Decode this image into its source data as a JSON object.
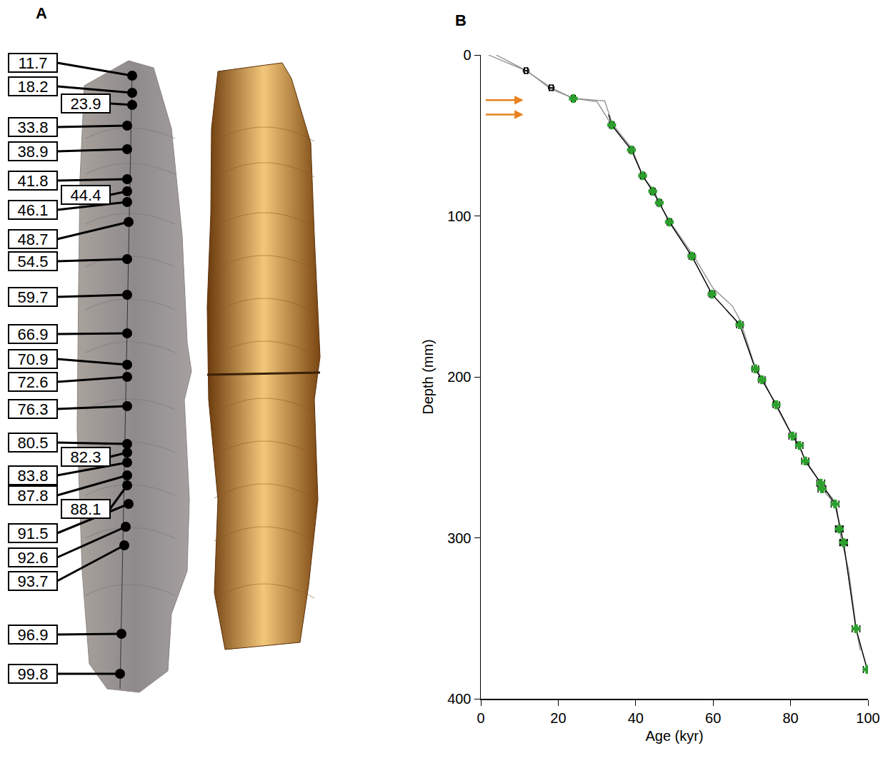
{
  "panel_a": {
    "letter": "A",
    "labels": [
      "11.7",
      "18.2",
      "23.9",
      "33.8",
      "38.9",
      "41.8",
      "44.4",
      "46.1",
      "48.7",
      "54.5",
      "59.7",
      "66.9",
      "70.9",
      "72.6",
      "76.3",
      "80.5",
      "82.3",
      "83.8",
      "87.8",
      "88.1",
      "91.5",
      "92.6",
      "93.7",
      "96.9",
      "99.8"
    ]
  },
  "panel_b": {
    "letter": "B"
  },
  "chart_data": {
    "type": "scatter",
    "x_label": "Age (kyr)",
    "y_label": "Depth (mm)",
    "xlim": [
      0,
      100
    ],
    "ylim": [
      400,
      0
    ],
    "xticks": [
      0,
      20,
      40,
      60,
      80,
      100
    ],
    "yticks": [
      0,
      100,
      200,
      300,
      400
    ],
    "grid": false,
    "series": [
      {
        "type": "line",
        "color": "#8c8c8c",
        "line_style": "solid",
        "x": [
          2,
          11.7,
          18.2,
          23.9,
          30,
          33.8,
          38.9,
          41.8,
          44.4,
          46.1,
          48.7,
          54.5,
          59.7,
          66.9,
          70.9,
          72.6,
          76.3,
          80.5,
          82.3,
          83.8,
          87.8,
          88.1,
          91.5,
          93,
          93.7,
          96.9,
          99.8
        ],
        "values": [
          0,
          9.8,
          20.4,
          27,
          29,
          43.5,
          59,
          75,
          84.7,
          91.8,
          103.8,
          125,
          148.6,
          167.6,
          195,
          201.8,
          217.3,
          236.8,
          242.6,
          252.3,
          266,
          269.6,
          279,
          297,
          303,
          356.5,
          381.8
        ]
      },
      {
        "type": "line",
        "color": "#8c8c8c",
        "line_style": "solid",
        "x": [
          4,
          12,
          18,
          24,
          32,
          34,
          39,
          41,
          42,
          45,
          46,
          49,
          55,
          60,
          65,
          67,
          71,
          73,
          76,
          80,
          82,
          84,
          88,
          91,
          92,
          93,
          95,
          97,
          98
        ],
        "values": [
          0,
          10,
          21,
          27,
          28.5,
          43,
          58,
          70,
          76,
          85,
          92,
          104,
          125,
          145,
          156,
          165,
          195,
          202,
          217,
          235,
          243,
          252,
          267,
          276,
          282,
          300,
          320,
          357,
          370
        ]
      },
      {
        "type": "line",
        "color": "#000000",
        "line_style": "solid",
        "x": [
          33,
          33.8,
          38.9,
          41.8,
          44.4,
          46.1,
          48.7,
          54.5,
          59.7,
          66.9,
          70.9,
          72.6,
          76.3,
          80.5,
          82.3,
          83.8,
          87.8,
          91.5,
          93.7,
          96.9,
          99.8
        ],
        "values": [
          37,
          43.5,
          59,
          75,
          84.7,
          91.8,
          103.8,
          125,
          148.6,
          167.6,
          195,
          201.8,
          217.3,
          236.8,
          242.6,
          252.3,
          266,
          279,
          303,
          356.5,
          381.8
        ]
      },
      {
        "type": "scatter",
        "marker": "circle-open",
        "color": "#000000",
        "x": [
          11.7,
          18.2,
          92.6,
          93.7
        ],
        "values": [
          9.8,
          20.4,
          294.5,
          303
        ],
        "x_error": [
          0.4,
          0.5,
          0.8,
          0.8
        ]
      },
      {
        "type": "scatter",
        "marker": "cross",
        "color": "#2ca02c",
        "x": [
          23.9,
          33.8,
          38.9,
          41.8,
          44.4,
          46.1,
          48.7,
          54.5,
          59.7,
          66.9,
          70.9,
          72.6,
          76.3,
          80.5,
          82.3,
          83.8,
          87.8,
          88.1,
          91.5,
          92.6,
          93.7,
          96.9,
          99.8
        ],
        "values": [
          27.1,
          43.5,
          59,
          75,
          84.7,
          91.8,
          103.8,
          125,
          148.6,
          167.6,
          195,
          201.8,
          217.3,
          236.8,
          242.6,
          252.3,
          266,
          269.6,
          279,
          294.5,
          303,
          356.5,
          381.8
        ],
        "x_error": [
          0.5,
          0.6,
          0.6,
          0.6,
          0.6,
          0.6,
          0.6,
          0.7,
          0.7,
          0.8,
          0.8,
          0.8,
          0.8,
          0.9,
          0.9,
          0.9,
          1.0,
          1.0,
          1.0,
          1.0,
          1.0,
          1.0,
          1.0
        ]
      }
    ],
    "arrows": [
      {
        "x0": 1,
        "x1": 11,
        "y": 28,
        "color": "#e8821e"
      },
      {
        "x0": 1,
        "x1": 11,
        "y": 37,
        "color": "#e8821e"
      }
    ]
  }
}
